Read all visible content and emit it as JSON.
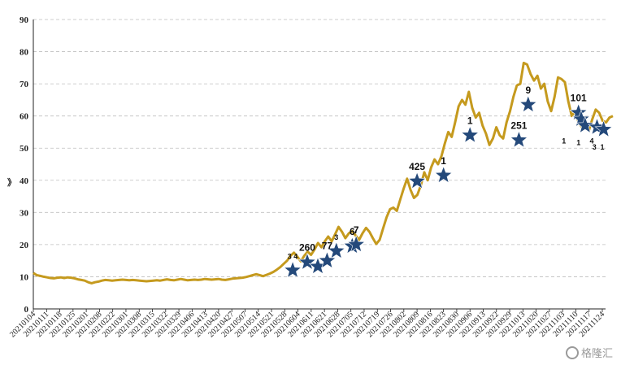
{
  "chart_data": {
    "type": "line",
    "ylim": [
      0,
      90
    ],
    "yticks": [
      0,
      10,
      20,
      30,
      40,
      50,
      60,
      70,
      80,
      90
    ],
    "y_side_label": "》",
    "grid": "horizontal-dashed",
    "line_color": "#C59A1E",
    "star_color": "#24497A",
    "x_tick_labels": [
      "20210104",
      "20210111",
      "20210118",
      "20210125",
      "20210201",
      "20210208",
      "20210222",
      "20210301",
      "20210308",
      "20210315",
      "20210322",
      "20210329",
      "20210406",
      "20210413",
      "20210420",
      "20210427",
      "20210507",
      "20210514",
      "20210521",
      "20210528",
      "20210604",
      "20210611",
      "20210621",
      "20210628",
      "20210705",
      "20210712",
      "20210719",
      "20210726",
      "20210802",
      "20210809",
      "20210816",
      "20210823",
      "20210830",
      "20210906",
      "20210913",
      "20210922",
      "20210929",
      "20211013",
      "20211020",
      "20211027",
      "20211103",
      "20211110",
      "20211117",
      "20211124"
    ],
    "series": [
      {
        "x_start_index": 0,
        "x_end_index": 43.8,
        "values": [
          11.2,
          10.5,
          10.3,
          10,
          9.8,
          9.6,
          9.5,
          9.7,
          9.8,
          9.6,
          9.8,
          9.7,
          9.5,
          9.2,
          9,
          8.8,
          8.3,
          8.0,
          8.3,
          8.5,
          8.8,
          9.0,
          8.9,
          8.8,
          8.9,
          9.0,
          9.1,
          9.0,
          8.9,
          9.0,
          8.9,
          8.8,
          8.7,
          8.6,
          8.7,
          8.8,
          8.9,
          8.8,
          9.0,
          9.2,
          9.0,
          8.9,
          9.1,
          9.3,
          9.1,
          8.9,
          9.0,
          9.1,
          9.0,
          9.1,
          9.3,
          9.2,
          9.1,
          9.2,
          9.3,
          9.1,
          9.0,
          9.2,
          9.4,
          9.5,
          9.6,
          9.7,
          9.9,
          10.2,
          10.5,
          10.8,
          10.5,
          10.2,
          10.6,
          11.0,
          11.5,
          12.2,
          13.0,
          14.0,
          15.0,
          16.5,
          17.5,
          16.2,
          14.8,
          16.5,
          17.8,
          16.8,
          18.5,
          20.5,
          19.2,
          21.0,
          22.5,
          21.0,
          23.2,
          25.5,
          24.0,
          22.0,
          23.5,
          24.2,
          22.8,
          21.5,
          23.5,
          25.2,
          24.0,
          22.0,
          20.2,
          21.5,
          25.0,
          28.5,
          31.0,
          31.5,
          30.5,
          34.0,
          37.5,
          40.5,
          37.0,
          34.5,
          35.5,
          38.5,
          42.5,
          40.0,
          44.0,
          46.5,
          45.0,
          47.5,
          51.5,
          55.0,
          53.5,
          58.0,
          63.0,
          65.0,
          63.5,
          67.5,
          62.5,
          59.5,
          61.0,
          57.0,
          54.5,
          51.0,
          53.0,
          56.5,
          54.0,
          53.0,
          58.0,
          61.5,
          66.0,
          69.5,
          70.0,
          76.5,
          76.0,
          73.0,
          71.0,
          72.5,
          68.5,
          70.0,
          64.5,
          61.5,
          66.0,
          72.0,
          71.5,
          70.5,
          64.5,
          60.0,
          61.5,
          58.0,
          56.5,
          57.5,
          55.5,
          59.0,
          62.0,
          61.0,
          58.5,
          58.0,
          59.5,
          60.0
        ]
      }
    ],
    "markers": [
      {
        "x_index": 19.6,
        "y": 12.0,
        "label": "3 4",
        "label_size": "small"
      },
      {
        "x_index": 20.7,
        "y": 14.5,
        "label": "260",
        "label_size": "large"
      },
      {
        "x_index": 21.5,
        "y": 13.2,
        "label": "",
        "label_size": "large"
      },
      {
        "x_index": 22.9,
        "y": 18.0,
        "label": "3",
        "label_size": "small"
      },
      {
        "x_index": 22.2,
        "y": 15.0,
        "label": "77",
        "label_size": "large"
      },
      {
        "x_index": 24.1,
        "y": 19.5,
        "label": "6",
        "label_size": "large"
      },
      {
        "x_index": 24.4,
        "y": 20.0,
        "label": "7",
        "label_size": "large"
      },
      {
        "x_index": 29.0,
        "y": 39.7,
        "label": "425",
        "label_size": "large"
      },
      {
        "x_index": 31.0,
        "y": 41.5,
        "label": "1",
        "label_size": "large"
      },
      {
        "x_index": 33.0,
        "y": 54.0,
        "label": "1",
        "label_size": "large"
      },
      {
        "x_index": 36.7,
        "y": 52.5,
        "label": "251",
        "label_size": "large"
      },
      {
        "x_index": 37.4,
        "y": 63.5,
        "label": "9",
        "label_size": "large"
      },
      {
        "x_index": 41.2,
        "y": 61.0,
        "label": "101",
        "label_size": "large"
      },
      {
        "x_index": 41.4,
        "y": 59.0,
        "label": "",
        "label_size": "small"
      },
      {
        "x_index": 41.7,
        "y": 57.0,
        "label": "",
        "label_size": "small"
      },
      {
        "x_index": 42.6,
        "y": 56.5,
        "label": "",
        "label_size": "small"
      },
      {
        "x_index": 43.1,
        "y": 55.8,
        "label": "",
        "label_size": "small"
      }
    ],
    "extra_labels": [
      {
        "x_index": 40.1,
        "y": 51.5,
        "text": "1"
      },
      {
        "x_index": 41.2,
        "y": 51.0,
        "text": "1"
      },
      {
        "x_index": 42.2,
        "y": 51.5,
        "text": "4"
      },
      {
        "x_index": 42.4,
        "y": 49.5,
        "text": "3"
      },
      {
        "x_index": 43.0,
        "y": 49.5,
        "text": "1"
      }
    ]
  },
  "watermark": {
    "text": "格隆汇"
  }
}
